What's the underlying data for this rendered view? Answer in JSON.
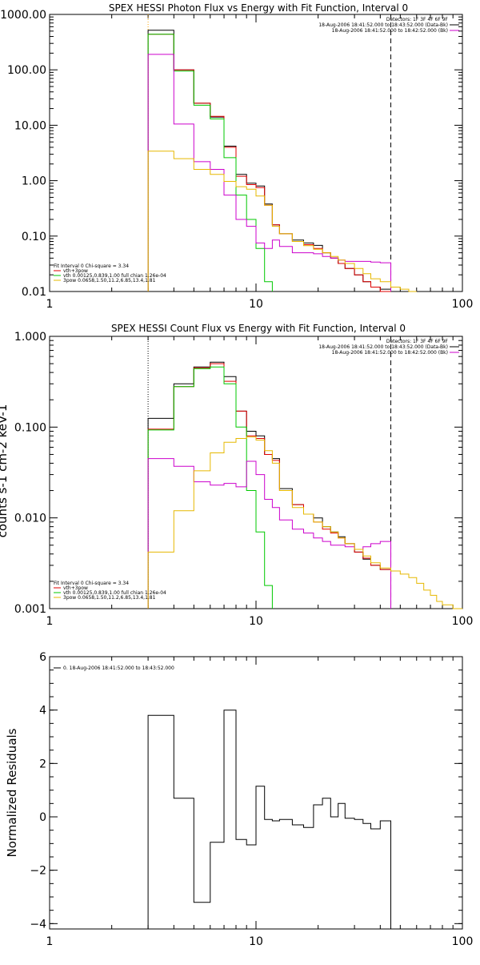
{
  "chart_data": [
    {
      "type": "line",
      "title": "SPEX HESSI Photon Flux vs Energy with Fit Function, Interval 0",
      "xlim": [
        1,
        100
      ],
      "ylim": [
        0.01,
        1000
      ],
      "xscale": "log",
      "yscale": "log",
      "x_ticks": [
        1,
        10,
        100
      ],
      "x_tick_labels": [
        "1",
        "10",
        "100"
      ],
      "y_ticks": [
        1000,
        100,
        10,
        1,
        0.1,
        0.01
      ],
      "y_tick_labels": [
        "1000.00",
        "100.00",
        "10.00",
        "1.00",
        "0.10",
        "0.01"
      ],
      "vlines": [
        {
          "x": 3,
          "style": "dotted",
          "color": "#ffa500"
        },
        {
          "x": 45,
          "style": "dashed",
          "color": "#000000"
        }
      ],
      "legend_right": [
        {
          "text": "Detectors: 1F 3F 4F 6F 9F",
          "color": "#000000"
        },
        {
          "text": "18-Aug-2006 18:41:52.000 to 18:43:52.000 (Data-Bk)",
          "color": "#000000"
        },
        {
          "text": "18-Aug-2006 18:41:52.000 to 18:42:52.000 (Bk)",
          "color": "#cc00cc"
        }
      ],
      "legend_left": [
        {
          "text": "Fit Interval 0   Chi-square = 3.34",
          "color": "#000000"
        },
        {
          "text": "vth+3pow",
          "color": "#e00000"
        },
        {
          "text": "vth 0.00125,0.839,1.00  full chian 1.26e-04",
          "color": "#00c800"
        },
        {
          "text": "3pow 0.0658,1.50,11.2,6.85,13.4,1.81",
          "color": "#e6b800"
        }
      ],
      "series": [
        {
          "color": "#000000",
          "edges": [
            3,
            4,
            5,
            6,
            7,
            8,
            9,
            10,
            11,
            12,
            13,
            15,
            17,
            19,
            21,
            23,
            25,
            27,
            30,
            33,
            36,
            40,
            45
          ],
          "values": [
            520,
            100,
            25,
            14,
            4.2,
            1.3,
            0.9,
            0.8,
            0.38,
            0.16,
            0.11,
            0.085,
            0.075,
            0.068,
            0.05,
            0.04,
            0.032,
            0.026,
            0.02,
            0.015,
            0.012,
            0.011
          ]
        },
        {
          "color": "#e00000",
          "edges": [
            3,
            4,
            5,
            6,
            7,
            8,
            9,
            10,
            11,
            12,
            13,
            15,
            17,
            19,
            21,
            23,
            25,
            27,
            30,
            33,
            36,
            40,
            45
          ],
          "values": [
            440,
            100,
            25,
            14.5,
            4,
            1.2,
            0.85,
            0.75,
            0.36,
            0.16,
            0.11,
            0.08,
            0.07,
            0.06,
            0.05,
            0.04,
            0.032,
            0.026,
            0.02,
            0.015,
            0.012,
            0.01
          ]
        },
        {
          "color": "#00c800",
          "edges": [
            3,
            4,
            5,
            6,
            7,
            8,
            9,
            10,
            11,
            12
          ],
          "values": [
            440,
            95,
            23,
            13,
            2.6,
            0.55,
            0.2,
            0.06,
            0.015
          ]
        },
        {
          "color": "#cc00cc",
          "edges": [
            3,
            4,
            5,
            6,
            7,
            8,
            9,
            10,
            11,
            12,
            13,
            15,
            17,
            19,
            21,
            23,
            25,
            27,
            30,
            33,
            36,
            40,
            45
          ],
          "values": [
            190,
            10.5,
            2.2,
            1.6,
            0.55,
            0.2,
            0.15,
            0.075,
            0.06,
            0.085,
            0.065,
            0.05,
            0.05,
            0.048,
            0.043,
            0.04,
            0.037,
            0.035,
            0.035,
            0.035,
            0.034,
            0.033
          ]
        },
        {
          "color": "#e6b800",
          "edges": [
            3,
            4,
            5,
            6,
            7,
            8,
            9,
            10,
            11,
            12,
            13,
            15,
            17,
            19,
            21,
            23,
            25,
            27,
            30,
            33,
            36,
            40,
            45,
            50,
            55,
            60
          ],
          "values": [
            3.4,
            2.5,
            1.6,
            1.3,
            0.97,
            0.78,
            0.7,
            0.53,
            0.36,
            0.15,
            0.11,
            0.08,
            0.067,
            0.058,
            0.05,
            0.043,
            0.037,
            0.032,
            0.026,
            0.021,
            0.017,
            0.015,
            0.012,
            0.011,
            0.01
          ]
        }
      ]
    },
    {
      "type": "line",
      "title": "SPEX HESSI Count Flux vs Energy with Fit Function, Interval 0",
      "xlim": [
        1,
        100
      ],
      "ylim": [
        0.001,
        1
      ],
      "xscale": "log",
      "yscale": "log",
      "x_ticks": [
        1,
        10,
        100
      ],
      "x_tick_labels": [
        "1",
        "10",
        "100"
      ],
      "y_ticks": [
        1,
        0.1,
        0.01,
        0.001
      ],
      "y_tick_labels": [
        "1.000",
        "0.100",
        "0.010",
        "0.001"
      ],
      "ylabel": "counts s-1 cm-2 keV-1",
      "vlines": [
        {
          "x": 3,
          "style": "dotted",
          "color": "#000000"
        },
        {
          "x": 45,
          "style": "dashed",
          "color": "#000000"
        }
      ],
      "legend_right": [
        {
          "text": "Detectors: 1F 3F 4F 6F 9F",
          "color": "#000000"
        },
        {
          "text": "18-Aug-2006 18:41:52.000 to 18:43:52.000 (Data-Bk)",
          "color": "#000000"
        },
        {
          "text": "18-Aug-2006 18:41:52.000 to 18:42:52.000 (Bk)",
          "color": "#cc00cc"
        }
      ],
      "legend_left": [
        {
          "text": "Fit Interval 0   Chi-square = 3.34",
          "color": "#000000"
        },
        {
          "text": "vth+3pow",
          "color": "#e00000"
        },
        {
          "text": "vth 0.00125,0.839,1.00  full chian 1.26e-04",
          "color": "#00c800"
        },
        {
          "text": "3pow 0.0658,1.50,11.2,6.85,13.4,1.81",
          "color": "#e6b800"
        }
      ],
      "series": [
        {
          "color": "#000000",
          "edges": [
            3,
            4,
            5,
            6,
            7,
            8,
            9,
            10,
            11,
            12,
            13,
            15,
            17,
            19,
            21,
            23,
            25,
            27,
            30,
            33,
            36,
            40,
            45
          ],
          "values": [
            0.125,
            0.3,
            0.46,
            0.52,
            0.36,
            0.15,
            0.09,
            0.08,
            0.05,
            0.045,
            0.021,
            0.014,
            0.011,
            0.01,
            0.008,
            0.007,
            0.0062,
            0.0052,
            0.0042,
            0.0035,
            0.003,
            0.0027
          ]
        },
        {
          "color": "#e00000",
          "edges": [
            3,
            4,
            5,
            6,
            7,
            8,
            9,
            10,
            11,
            12,
            13,
            15,
            17,
            19,
            21,
            23,
            25,
            27,
            30,
            33,
            36,
            40,
            45
          ],
          "values": [
            0.095,
            0.28,
            0.45,
            0.5,
            0.32,
            0.15,
            0.08,
            0.075,
            0.05,
            0.043,
            0.02,
            0.014,
            0.011,
            0.009,
            0.0075,
            0.0068,
            0.006,
            0.0052,
            0.0042,
            0.0036,
            0.003,
            0.0027
          ]
        },
        {
          "color": "#00c800",
          "edges": [
            3,
            4,
            5,
            6,
            7,
            8,
            9,
            10,
            11,
            12
          ],
          "values": [
            0.093,
            0.28,
            0.44,
            0.46,
            0.3,
            0.1,
            0.02,
            0.007,
            0.0018
          ]
        },
        {
          "color": "#cc00cc",
          "edges": [
            3,
            4,
            5,
            6,
            7,
            8,
            9,
            10,
            11,
            12,
            13,
            15,
            17,
            19,
            21,
            23,
            25,
            27,
            30,
            33,
            36,
            40,
            45
          ],
          "values": [
            0.045,
            0.037,
            0.025,
            0.023,
            0.024,
            0.022,
            0.042,
            0.03,
            0.016,
            0.013,
            0.0095,
            0.0075,
            0.0068,
            0.006,
            0.0055,
            0.005,
            0.005,
            0.0048,
            0.0045,
            0.0048,
            0.0052,
            0.0055
          ]
        },
        {
          "color": "#e6b800",
          "edges": [
            3,
            4,
            5,
            6,
            7,
            8,
            9,
            10,
            11,
            12,
            13,
            15,
            17,
            19,
            21,
            23,
            25,
            27,
            30,
            33,
            36,
            40,
            45,
            50,
            55,
            60,
            65,
            70,
            75,
            80,
            90,
            100
          ],
          "values": [
            0.0042,
            0.012,
            0.033,
            0.052,
            0.068,
            0.075,
            0.078,
            0.072,
            0.055,
            0.04,
            0.02,
            0.013,
            0.011,
            0.009,
            0.008,
            0.007,
            0.006,
            0.0052,
            0.0045,
            0.0038,
            0.0032,
            0.0028,
            0.0026,
            0.0024,
            0.0022,
            0.0019,
            0.0016,
            0.0014,
            0.0012,
            0.0011,
            0.001
          ]
        }
      ]
    },
    {
      "type": "line",
      "title": "",
      "xlim": [
        1,
        100
      ],
      "ylim": [
        -4.2,
        6
      ],
      "xscale": "log",
      "yscale": "linear",
      "x_ticks": [
        1,
        10,
        100
      ],
      "x_tick_labels": [
        "1",
        "10",
        "100"
      ],
      "y_ticks": [
        6,
        4,
        2,
        0,
        -2,
        -4
      ],
      "y_tick_labels": [
        "6",
        "4",
        "2",
        "0",
        "−2",
        "−4"
      ],
      "ylabel": "Normalized Residuals",
      "legend_left": [
        {
          "text": "0. 18-Aug-2006 18:41:52.000 to 18:43:52.000",
          "color": "#000000"
        }
      ],
      "series": [
        {
          "color": "#000000",
          "edges": [
            3,
            4,
            5,
            6,
            7,
            8,
            9,
            10,
            11,
            12,
            13,
            15,
            17,
            19,
            21,
            23,
            25,
            27,
            30,
            33,
            36,
            40,
            45
          ],
          "values": [
            3.8,
            0.7,
            -3.2,
            -0.95,
            4.0,
            -0.85,
            -1.05,
            1.15,
            -0.1,
            -0.15,
            -0.1,
            -0.3,
            -0.4,
            0.45,
            0.7,
            0.0,
            0.5,
            -0.05,
            -0.1,
            -0.25,
            -0.45,
            -0.15
          ]
        }
      ]
    }
  ]
}
